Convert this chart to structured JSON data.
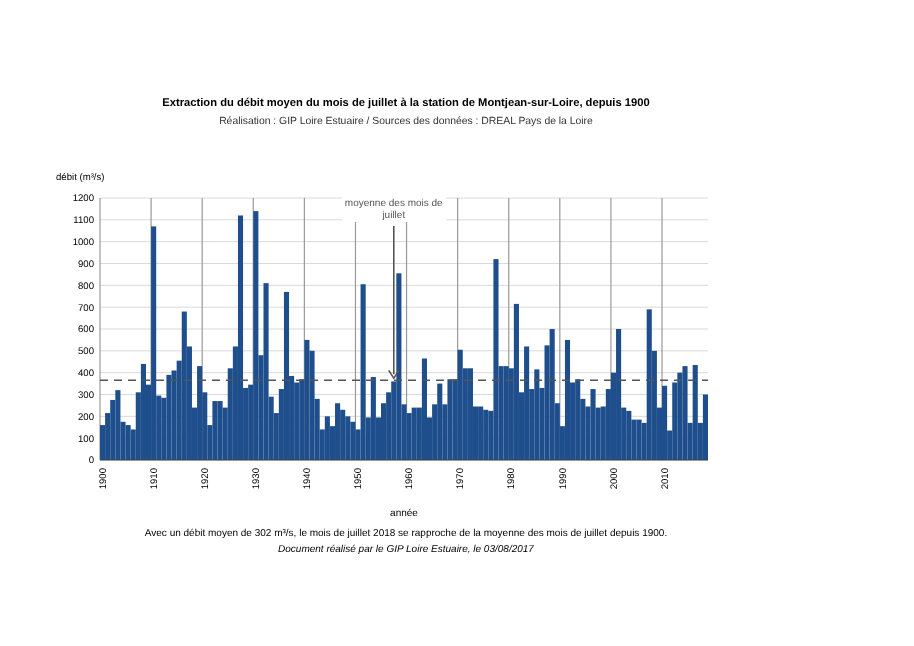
{
  "chart_data": {
    "type": "bar",
    "title": "Extraction du débit moyen du mois de juillet à la station de Montjean-sur-Loire, depuis 1900",
    "subtitle": "Réalisation : GIP Loire Estuaire / Sources des données : DREAL Pays de la Loire",
    "xlabel": "année",
    "ylabel": "débit (m³/s)",
    "x": [
      1900,
      1901,
      1902,
      1903,
      1904,
      1905,
      1906,
      1907,
      1908,
      1909,
      1910,
      1911,
      1912,
      1913,
      1914,
      1915,
      1916,
      1917,
      1918,
      1919,
      1920,
      1921,
      1922,
      1923,
      1924,
      1925,
      1926,
      1927,
      1928,
      1929,
      1930,
      1931,
      1932,
      1933,
      1934,
      1935,
      1936,
      1937,
      1938,
      1939,
      1940,
      1941,
      1942,
      1943,
      1944,
      1945,
      1946,
      1947,
      1948,
      1949,
      1950,
      1951,
      1952,
      1953,
      1954,
      1955,
      1956,
      1957,
      1958,
      1959,
      1960,
      1961,
      1962,
      1963,
      1964,
      1965,
      1966,
      1967,
      1968,
      1969,
      1970,
      1971,
      1972,
      1973,
      1974,
      1975,
      1976,
      1977,
      1978,
      1979,
      1980,
      1981,
      1982,
      1983,
      1984,
      1985,
      1986,
      1987,
      1988,
      1989,
      1990,
      1991,
      1992,
      1993,
      1994,
      1995,
      1996,
      1997,
      1998,
      1999,
      2000,
      2001,
      2002,
      2003,
      2004,
      2005,
      2006,
      2007,
      2008,
      2009,
      2010,
      2011,
      2012,
      2013,
      2014,
      2015,
      2016,
      2017,
      2018
    ],
    "values": [
      160,
      215,
      275,
      320,
      175,
      160,
      140,
      310,
      440,
      345,
      1070,
      295,
      285,
      390,
      410,
      455,
      680,
      520,
      240,
      430,
      310,
      160,
      270,
      270,
      240,
      420,
      520,
      1120,
      330,
      345,
      1140,
      480,
      810,
      290,
      215,
      325,
      770,
      385,
      355,
      370,
      550,
      500,
      280,
      140,
      200,
      155,
      260,
      230,
      200,
      175,
      140,
      805,
      195,
      380,
      195,
      260,
      310,
      360,
      855,
      255,
      215,
      240,
      240,
      465,
      195,
      255,
      350,
      255,
      370,
      370,
      505,
      420,
      420,
      245,
      245,
      230,
      225,
      920,
      430,
      430,
      420,
      715,
      310,
      520,
      325,
      415,
      330,
      525,
      600,
      260,
      155,
      550,
      355,
      370,
      280,
      245,
      325,
      240,
      245,
      325,
      400,
      600,
      240,
      225,
      185,
      185,
      170,
      690,
      500,
      240,
      340,
      135,
      355,
      400,
      430,
      170,
      435,
      170,
      300
    ],
    "color": "#1f4e8c",
    "xlim": [
      1899.5,
      2018.5
    ],
    "xticks": [
      1900,
      1910,
      1920,
      1930,
      1940,
      1950,
      1960,
      1970,
      1980,
      1990,
      2000,
      2010
    ],
    "ylim": [
      0,
      1200
    ],
    "yticks": [
      0,
      100,
      200,
      300,
      400,
      500,
      600,
      700,
      800,
      900,
      1000,
      1100,
      1200
    ],
    "grid": true,
    "ref_lines": [
      {
        "axis": "y",
        "value": 365,
        "label": "moyenne des mois de juillet",
        "color": "#555555",
        "line_style": "dashed"
      }
    ],
    "annotations": [
      "Avec un débit moyen de 302 m³/s, le mois de juillet 2018 se rapproche de la moyenne des mois de juillet depuis 1900.",
      "Document réalisé par le GIP Loire Estuaire, le 03/08/2017"
    ]
  }
}
